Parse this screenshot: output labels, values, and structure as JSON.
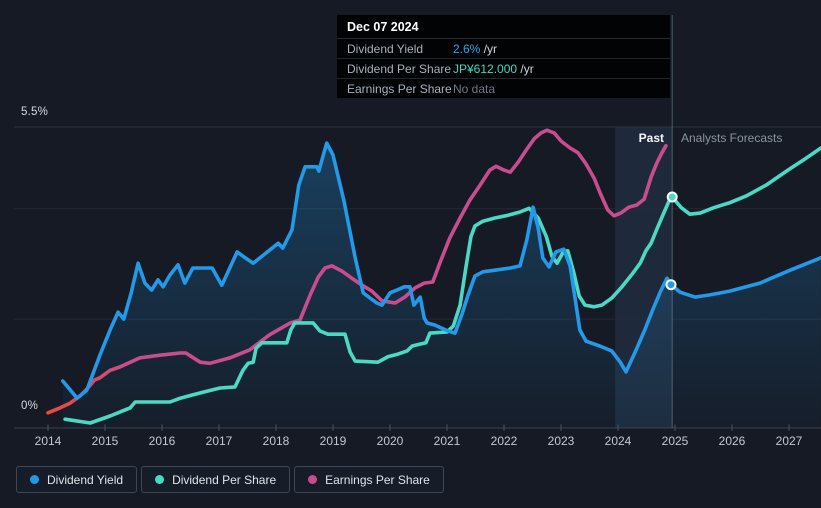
{
  "tooltip": {
    "date": "Dec 07 2024",
    "rows": [
      {
        "label": "Dividend Yield",
        "value": "2.6%",
        "suffix": " /yr",
        "value_color": "#2fa6f2"
      },
      {
        "label": "Dividend Per Share",
        "value": "JP¥612.000",
        "suffix": " /yr",
        "value_color": "#45d8c2"
      },
      {
        "label": "Earnings Per Share",
        "value": "No data",
        "suffix": "",
        "value_color": "#6e7887"
      }
    ]
  },
  "labels": {
    "past": "Past",
    "forecast": "Analysts Forecasts",
    "y_top": "5.5%",
    "y_bottom": "0%"
  },
  "legend": {
    "items": [
      {
        "label": "Dividend Yield",
        "color": "#2499e8"
      },
      {
        "label": "Dividend Per Share",
        "color": "#4cd9c3"
      },
      {
        "label": "Earnings Per Share",
        "color": "#c94d8e"
      }
    ]
  },
  "chart_data": {
    "type": "line",
    "title": "Dividend history and forecast",
    "y_axis_unit": "%",
    "ylim": [
      0,
      5.5
    ],
    "xlim": [
      2013.85,
      2027.56
    ],
    "x_ticks": [
      2014,
      2015,
      2016,
      2017,
      2018,
      2019,
      2020,
      2021,
      2022,
      2023,
      2024,
      2025,
      2026,
      2027
    ],
    "y_tick_labels": [
      "0%",
      "5.5%"
    ],
    "y_gridlines_pct": [
      5.5,
      3.98,
      1.93
    ],
    "grid": true,
    "legend_position": "bottom-left",
    "divider_year": 2024.95,
    "band_start_year": 2023.95,
    "hover": {
      "date": "Dec 07 2024",
      "dividend_yield": "2.6% /yr",
      "dividend_per_share": "JP¥612.000 /yr",
      "earnings_per_share": "No data"
    },
    "series": [
      {
        "name": "Dividend Yield",
        "color": "#2499e8",
        "fill_under": true,
        "marker": {
          "year": 2024.93,
          "value": 2.57
        },
        "points": [
          [
            2014.26,
            0.78
          ],
          [
            2014.51,
            0.46
          ],
          [
            2014.68,
            0.61
          ],
          [
            2014.91,
            1.26
          ],
          [
            2015.09,
            1.73
          ],
          [
            2015.23,
            2.06
          ],
          [
            2015.33,
            1.93
          ],
          [
            2015.46,
            2.42
          ],
          [
            2015.58,
            2.97
          ],
          [
            2015.7,
            2.6
          ],
          [
            2015.82,
            2.47
          ],
          [
            2015.93,
            2.66
          ],
          [
            2016.02,
            2.53
          ],
          [
            2016.14,
            2.75
          ],
          [
            2016.28,
            2.94
          ],
          [
            2016.4,
            2.6
          ],
          [
            2016.54,
            2.88
          ],
          [
            2016.88,
            2.88
          ],
          [
            2017.05,
            2.56
          ],
          [
            2017.32,
            3.18
          ],
          [
            2017.46,
            3.07
          ],
          [
            2017.6,
            2.97
          ],
          [
            2018.04,
            3.34
          ],
          [
            2018.12,
            3.25
          ],
          [
            2018.28,
            3.59
          ],
          [
            2018.4,
            4.42
          ],
          [
            2018.51,
            4.76
          ],
          [
            2018.72,
            4.76
          ],
          [
            2018.75,
            4.68
          ],
          [
            2018.89,
            5.2
          ],
          [
            2019.0,
            4.98
          ],
          [
            2019.19,
            4.14
          ],
          [
            2019.39,
            3.07
          ],
          [
            2019.53,
            2.42
          ],
          [
            2019.65,
            2.32
          ],
          [
            2019.77,
            2.23
          ],
          [
            2019.86,
            2.19
          ],
          [
            2020.0,
            2.42
          ],
          [
            2020.12,
            2.47
          ],
          [
            2020.25,
            2.53
          ],
          [
            2020.35,
            2.53
          ],
          [
            2020.42,
            2.19
          ],
          [
            2020.53,
            2.34
          ],
          [
            2020.6,
            1.95
          ],
          [
            2020.65,
            1.86
          ],
          [
            2020.79,
            1.82
          ],
          [
            2021.02,
            1.71
          ],
          [
            2021.14,
            1.67
          ],
          [
            2021.26,
            2.01
          ],
          [
            2021.37,
            2.38
          ],
          [
            2021.49,
            2.73
          ],
          [
            2021.63,
            2.81
          ],
          [
            2021.84,
            2.84
          ],
          [
            2022.11,
            2.88
          ],
          [
            2022.28,
            2.92
          ],
          [
            2022.4,
            3.4
          ],
          [
            2022.51,
            4.01
          ],
          [
            2022.6,
            3.62
          ],
          [
            2022.68,
            3.07
          ],
          [
            2022.79,
            2.9
          ],
          [
            2022.91,
            3.18
          ],
          [
            2023.05,
            3.23
          ],
          [
            2023.16,
            2.92
          ],
          [
            2023.25,
            2.29
          ],
          [
            2023.33,
            1.73
          ],
          [
            2023.44,
            1.52
          ],
          [
            2023.68,
            1.43
          ],
          [
            2023.89,
            1.34
          ],
          [
            2024.04,
            1.13
          ],
          [
            2024.14,
            0.95
          ],
          [
            2024.32,
            1.36
          ],
          [
            2024.47,
            1.73
          ],
          [
            2024.6,
            2.08
          ],
          [
            2024.74,
            2.43
          ],
          [
            2024.86,
            2.69
          ],
          [
            2024.93,
            2.57
          ],
          [
            2025.09,
            2.43
          ],
          [
            2025.35,
            2.34
          ],
          [
            2025.61,
            2.38
          ],
          [
            2025.96,
            2.45
          ],
          [
            2026.49,
            2.6
          ],
          [
            2027.02,
            2.84
          ],
          [
            2027.56,
            3.07
          ]
        ]
      },
      {
        "name": "Dividend Per Share",
        "color": "#4cd9c3",
        "fill_under": false,
        "marker": {
          "year": 2024.95,
          "value": 4.2
        },
        "points": [
          [
            2014.3,
            0.07
          ],
          [
            2014.74,
            0.0
          ],
          [
            2015.09,
            0.13
          ],
          [
            2015.44,
            0.28
          ],
          [
            2015.53,
            0.39
          ],
          [
            2016.14,
            0.39
          ],
          [
            2016.32,
            0.46
          ],
          [
            2016.53,
            0.52
          ],
          [
            2016.75,
            0.58
          ],
          [
            2017.02,
            0.65
          ],
          [
            2017.28,
            0.67
          ],
          [
            2017.42,
            0.98
          ],
          [
            2017.51,
            1.11
          ],
          [
            2017.6,
            1.13
          ],
          [
            2017.65,
            1.39
          ],
          [
            2017.75,
            1.49
          ],
          [
            2018.19,
            1.49
          ],
          [
            2018.26,
            1.73
          ],
          [
            2018.33,
            1.86
          ],
          [
            2018.65,
            1.86
          ],
          [
            2018.77,
            1.71
          ],
          [
            2018.91,
            1.65
          ],
          [
            2019.21,
            1.65
          ],
          [
            2019.3,
            1.32
          ],
          [
            2019.39,
            1.15
          ],
          [
            2019.79,
            1.13
          ],
          [
            2019.96,
            1.23
          ],
          [
            2020.14,
            1.28
          ],
          [
            2020.3,
            1.34
          ],
          [
            2020.39,
            1.43
          ],
          [
            2020.63,
            1.49
          ],
          [
            2020.7,
            1.67
          ],
          [
            2021.0,
            1.69
          ],
          [
            2021.11,
            1.8
          ],
          [
            2021.23,
            2.19
          ],
          [
            2021.33,
            2.88
          ],
          [
            2021.42,
            3.46
          ],
          [
            2021.49,
            3.66
          ],
          [
            2021.63,
            3.75
          ],
          [
            2021.84,
            3.81
          ],
          [
            2022.07,
            3.86
          ],
          [
            2022.28,
            3.92
          ],
          [
            2022.44,
            3.99
          ],
          [
            2022.6,
            3.81
          ],
          [
            2022.74,
            3.47
          ],
          [
            2022.84,
            3.1
          ],
          [
            2022.93,
            2.97
          ],
          [
            2023.04,
            3.18
          ],
          [
            2023.12,
            3.2
          ],
          [
            2023.23,
            2.77
          ],
          [
            2023.32,
            2.36
          ],
          [
            2023.42,
            2.19
          ],
          [
            2023.58,
            2.16
          ],
          [
            2023.72,
            2.19
          ],
          [
            2023.89,
            2.32
          ],
          [
            2024.07,
            2.53
          ],
          [
            2024.25,
            2.77
          ],
          [
            2024.39,
            2.97
          ],
          [
            2024.49,
            3.2
          ],
          [
            2024.58,
            3.34
          ],
          [
            2024.68,
            3.6
          ],
          [
            2024.81,
            3.92
          ],
          [
            2024.89,
            4.11
          ],
          [
            2024.95,
            4.2
          ],
          [
            2025.11,
            4.0
          ],
          [
            2025.26,
            3.88
          ],
          [
            2025.44,
            3.9
          ],
          [
            2025.68,
            4.0
          ],
          [
            2025.95,
            4.09
          ],
          [
            2026.25,
            4.22
          ],
          [
            2026.6,
            4.42
          ],
          [
            2026.98,
            4.7
          ],
          [
            2027.3,
            4.92
          ],
          [
            2027.56,
            5.11
          ]
        ]
      },
      {
        "name": "Earnings Per Share",
        "color": "#c94d8e",
        "start_color": "#ee4b3b",
        "fill_under": false,
        "points": [
          [
            2014.0,
            0.19
          ],
          [
            2014.21,
            0.28
          ],
          [
            2014.39,
            0.37
          ],
          [
            2014.56,
            0.5
          ],
          [
            2014.7,
            0.65
          ],
          [
            2014.82,
            0.8
          ],
          [
            2014.91,
            0.84
          ],
          [
            2015.09,
            0.98
          ],
          [
            2015.26,
            1.04
          ],
          [
            2015.61,
            1.21
          ],
          [
            2015.96,
            1.26
          ],
          [
            2016.32,
            1.3
          ],
          [
            2016.42,
            1.3
          ],
          [
            2016.67,
            1.13
          ],
          [
            2016.84,
            1.11
          ],
          [
            2017.19,
            1.21
          ],
          [
            2017.54,
            1.36
          ],
          [
            2017.89,
            1.64
          ],
          [
            2018.25,
            1.86
          ],
          [
            2018.42,
            1.91
          ],
          [
            2018.6,
            2.38
          ],
          [
            2018.74,
            2.71
          ],
          [
            2018.86,
            2.88
          ],
          [
            2018.98,
            2.92
          ],
          [
            2019.16,
            2.82
          ],
          [
            2019.33,
            2.69
          ],
          [
            2019.51,
            2.56
          ],
          [
            2019.68,
            2.45
          ],
          [
            2019.86,
            2.27
          ],
          [
            2020.09,
            2.23
          ],
          [
            2020.26,
            2.34
          ],
          [
            2020.44,
            2.51
          ],
          [
            2020.6,
            2.6
          ],
          [
            2020.75,
            2.62
          ],
          [
            2020.88,
            2.99
          ],
          [
            2021.05,
            3.44
          ],
          [
            2021.23,
            3.81
          ],
          [
            2021.4,
            4.14
          ],
          [
            2021.58,
            4.42
          ],
          [
            2021.75,
            4.7
          ],
          [
            2021.86,
            4.77
          ],
          [
            2022.0,
            4.7
          ],
          [
            2022.11,
            4.66
          ],
          [
            2022.25,
            4.85
          ],
          [
            2022.39,
            5.07
          ],
          [
            2022.53,
            5.28
          ],
          [
            2022.65,
            5.39
          ],
          [
            2022.75,
            5.44
          ],
          [
            2022.88,
            5.39
          ],
          [
            2023.0,
            5.24
          ],
          [
            2023.16,
            5.11
          ],
          [
            2023.3,
            5.02
          ],
          [
            2023.44,
            4.81
          ],
          [
            2023.58,
            4.55
          ],
          [
            2023.7,
            4.24
          ],
          [
            2023.82,
            3.96
          ],
          [
            2023.93,
            3.85
          ],
          [
            2024.05,
            3.9
          ],
          [
            2024.19,
            4.01
          ],
          [
            2024.33,
            4.05
          ],
          [
            2024.46,
            4.16
          ],
          [
            2024.58,
            4.57
          ],
          [
            2024.68,
            4.83
          ],
          [
            2024.77,
            5.02
          ],
          [
            2024.84,
            5.15
          ]
        ]
      }
    ]
  }
}
